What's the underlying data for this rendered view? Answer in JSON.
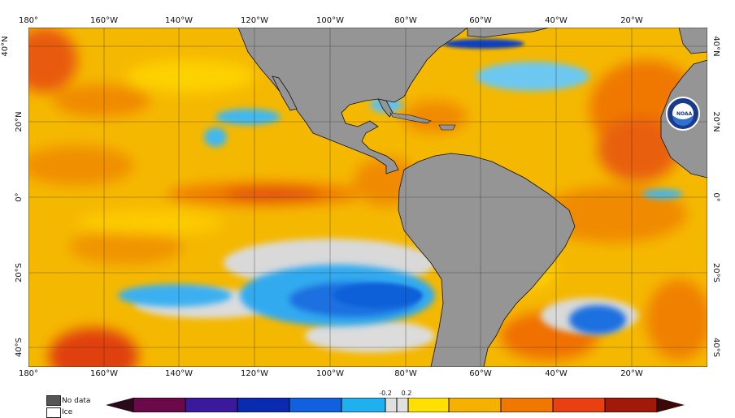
{
  "map": {
    "lon_labels": [
      "180°",
      "160°W",
      "140°W",
      "120°W",
      "100°W",
      "80°W",
      "60°W",
      "40°W",
      "20°W"
    ],
    "lat_labels_left": [
      "40°N",
      "20°N",
      "0°",
      "20°S",
      "40°S"
    ],
    "lat_labels_right": [
      "40°N",
      "20°N",
      "0°",
      "20°S",
      "40°S"
    ],
    "logo_text": "NOAA"
  },
  "legend": {
    "no_data_label": "No data",
    "ice_label": "Ice",
    "colorbar_low_label": "-0.2",
    "colorbar_high_label": "0.2"
  },
  "colors": {
    "land": "#959595",
    "ocean_base": "#f5b800",
    "warm": "#f07d00",
    "hot": "#e04010",
    "cool": "#1ea0f0",
    "cold": "#1060e0",
    "neutral": "#d9d9d9",
    "no_data": "#555555"
  }
}
